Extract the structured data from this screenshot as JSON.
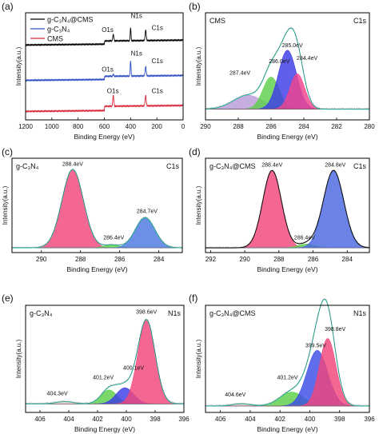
{
  "chart_data": [
    {
      "type": "line",
      "letter": "(a)",
      "xlabel": "Binding Energy (eV)",
      "ylabel": "Intensity(a.u.)",
      "xlim": [
        1200,
        0
      ],
      "ylim": [
        0,
        100
      ],
      "xticks": [
        1200,
        1000,
        800,
        600,
        400,
        200,
        0
      ],
      "legend": [
        "g-C₃N₄@CMS",
        "g-C₃N₄",
        "CMS"
      ],
      "legend_position": "top-left",
      "series": [
        {
          "name": "g-C₃N₄@CMS",
          "color": "#000000",
          "offset": 70,
          "peaks": [
            [
              532,
              4,
              6
            ],
            [
              400,
              3,
              12
            ],
            [
              285,
              4,
              10
            ]
          ],
          "edge_ev": 600,
          "edge_h": 3
        },
        {
          "name": "g-C₃N₄",
          "color": "#2e4fc4",
          "offset": 37,
          "peaks": [
            [
              532,
              3,
              2
            ],
            [
              400,
              3,
              14
            ],
            [
              285,
              4,
              9
            ]
          ],
          "edge_ev": 600,
          "edge_h": 3
        },
        {
          "name": "CMS",
          "color": "#d9263a",
          "offset": 8,
          "peaks": [
            [
              532,
              4,
              10
            ],
            [
              285,
              4,
              10
            ]
          ],
          "edge_ev": 600,
          "edge_h": 4
        }
      ],
      "annotations": [
        {
          "text": "N1s",
          "x": 398,
          "y": 95
        },
        {
          "text": "C1s",
          "x": 240,
          "y": 84
        },
        {
          "text": "O1s",
          "x": 620,
          "y": 82
        },
        {
          "text": "N1s",
          "x": 398,
          "y": 60
        },
        {
          "text": "C1s",
          "x": 240,
          "y": 53
        },
        {
          "text": "O1s",
          "x": 620,
          "y": 45
        },
        {
          "text": "O1s",
          "x": 580,
          "y": 25
        },
        {
          "text": "C1s",
          "x": 240,
          "y": 25
        }
      ]
    },
    {
      "type": "area",
      "letter": "(b)",
      "title": "CMS",
      "core_level": "C1s",
      "xlabel": "Binding Energy (eV)",
      "ylabel": "Intensity(a.u.)",
      "xlim": [
        290,
        280
      ],
      "ylim": [
        0,
        100
      ],
      "xticks": [
        290,
        288,
        286,
        284,
        282,
        280
      ],
      "baseline": 10,
      "components": [
        {
          "center": 287.4,
          "amplitude": 13,
          "sigma": 0.9,
          "color": "#b89bd9",
          "label": "287.4eV",
          "label_pos": [
            287.9,
            42
          ]
        },
        {
          "center": 286.0,
          "amplitude": 30,
          "sigma": 0.5,
          "color": "#5dd04a",
          "label": "286.0eV",
          "label_pos": [
            285.5,
            53
          ]
        },
        {
          "center": 285.0,
          "amplitude": 55,
          "sigma": 0.55,
          "color": "#3c3ce6",
          "label": "285.0eV",
          "label_pos": [
            284.7,
            68
          ]
        },
        {
          "center": 284.4,
          "amplitude": 33,
          "sigma": 0.45,
          "color": "#f0448c",
          "label": "284.4eV",
          "label_pos": [
            283.8,
            56
          ]
        }
      ],
      "envelope_color": "#26c0a6"
    },
    {
      "type": "area",
      "letter": "(c)",
      "title": "g-C₃N₄",
      "core_level": "C1s",
      "xlabel": "Binding Energy (eV)",
      "ylabel": "Intensity(a.u.)",
      "xlim": [
        291.5,
        282.8
      ],
      "ylim": [
        0,
        100
      ],
      "xticks": [
        290,
        288,
        286,
        284
      ],
      "baseline": 5,
      "components": [
        {
          "center": 288.4,
          "amplitude": 83,
          "sigma": 0.55,
          "color": "#f0467a",
          "label": "288.4eV",
          "label_pos": [
            288.4,
            92
          ]
        },
        {
          "center": 286.4,
          "amplitude": 3,
          "sigma": 0.4,
          "color": "#5dd04a",
          "label": "286.4eV",
          "label_pos": [
            286.3,
            14
          ]
        },
        {
          "center": 284.7,
          "amplitude": 32,
          "sigma": 0.5,
          "color": "#4b78e0",
          "label": "284.7eV",
          "label_pos": [
            284.6,
            42
          ]
        }
      ],
      "envelope_color": "#26c0a6"
    },
    {
      "type": "area",
      "letter": "(d)",
      "title": "g-C₃N₄@CMS",
      "core_level": "C1s",
      "xlabel": "Binding Energy (eV)",
      "ylabel": "Intensity(a.u.)",
      "xlim": [
        292.3,
        282.7
      ],
      "ylim": [
        0,
        100
      ],
      "xticks": [
        292,
        290,
        288,
        286,
        284
      ],
      "baseline": 5,
      "components": [
        {
          "center": 288.4,
          "amplitude": 82,
          "sigma": 0.55,
          "color": "#f0467a",
          "label": "288.4eV",
          "label_pos": [
            288.4,
            91
          ]
        },
        {
          "center": 286.4,
          "amplitude": 4,
          "sigma": 0.5,
          "color": "#5dd04a",
          "label": "286.4eV",
          "label_pos": [
            286.5,
            14
          ]
        },
        {
          "center": 284.8,
          "amplitude": 82,
          "sigma": 0.6,
          "color": "#4b68e0",
          "label": "284.8eV",
          "label_pos": [
            284.7,
            91
          ]
        }
      ],
      "envelope_color": "#000000"
    },
    {
      "type": "area",
      "letter": "(e)",
      "title": "g-C₃N₄",
      "core_level": "N1s",
      "xlabel": "Binding Energy (eV)",
      "ylabel": "Intensity(a.u.)",
      "xlim": [
        407,
        396
      ],
      "ylim": [
        0,
        100
      ],
      "xticks": [
        406,
        404,
        402,
        400,
        398,
        396
      ],
      "baseline": 8,
      "components": [
        {
          "center": 404.3,
          "amplitude": 2,
          "sigma": 0.6,
          "color": "#f8c8c8",
          "label": "404.3eV",
          "label_pos": [
            404.8,
            16
          ]
        },
        {
          "center": 401.2,
          "amplitude": 13,
          "sigma": 0.55,
          "color": "#5dd04a",
          "label": "401.2eV",
          "label_pos": [
            401.6,
            31
          ]
        },
        {
          "center": 400.1,
          "amplitude": 15,
          "sigma": 0.6,
          "color": "#3c3ce6",
          "label": "400.1eV",
          "label_pos": [
            399.5,
            40
          ]
        },
        {
          "center": 398.6,
          "amplitude": 78,
          "sigma": 0.6,
          "color": "#f0467a",
          "label": "398.6eV",
          "label_pos": [
            398.6,
            92
          ]
        }
      ],
      "envelope_color": "#26c0a6"
    },
    {
      "type": "area",
      "letter": "(f)",
      "title": "g-C₃N₄@CMS",
      "core_level": "N1s",
      "xlabel": "Binding Energy (eV)",
      "ylabel": "Intensity(a.u.)",
      "xlim": [
        407,
        396
      ],
      "ylim": [
        0,
        100
      ],
      "xticks": [
        406,
        404,
        402,
        400,
        398,
        396
      ],
      "baseline": 6,
      "components": [
        {
          "center": 404.6,
          "amplitude": 2,
          "sigma": 0.6,
          "color": "#f8c8c8",
          "label": "404.6eV",
          "label_pos": [
            405,
            15
          ]
        },
        {
          "center": 401.2,
          "amplitude": 13,
          "sigma": 0.8,
          "color": "#5dd04a",
          "label": "401.2eV",
          "label_pos": [
            401.5,
            31
          ]
        },
        {
          "center": 399.5,
          "amplitude": 52,
          "sigma": 0.7,
          "color": "#3c4de6",
          "label": "399.5eV",
          "label_pos": [
            399.6,
            61
          ]
        },
        {
          "center": 398.8,
          "amplitude": 63,
          "sigma": 0.55,
          "color": "#f0467a",
          "label": "398.8eV",
          "label_pos": [
            398.3,
            76
          ]
        }
      ],
      "envelope_color": "#26c0a6"
    }
  ]
}
